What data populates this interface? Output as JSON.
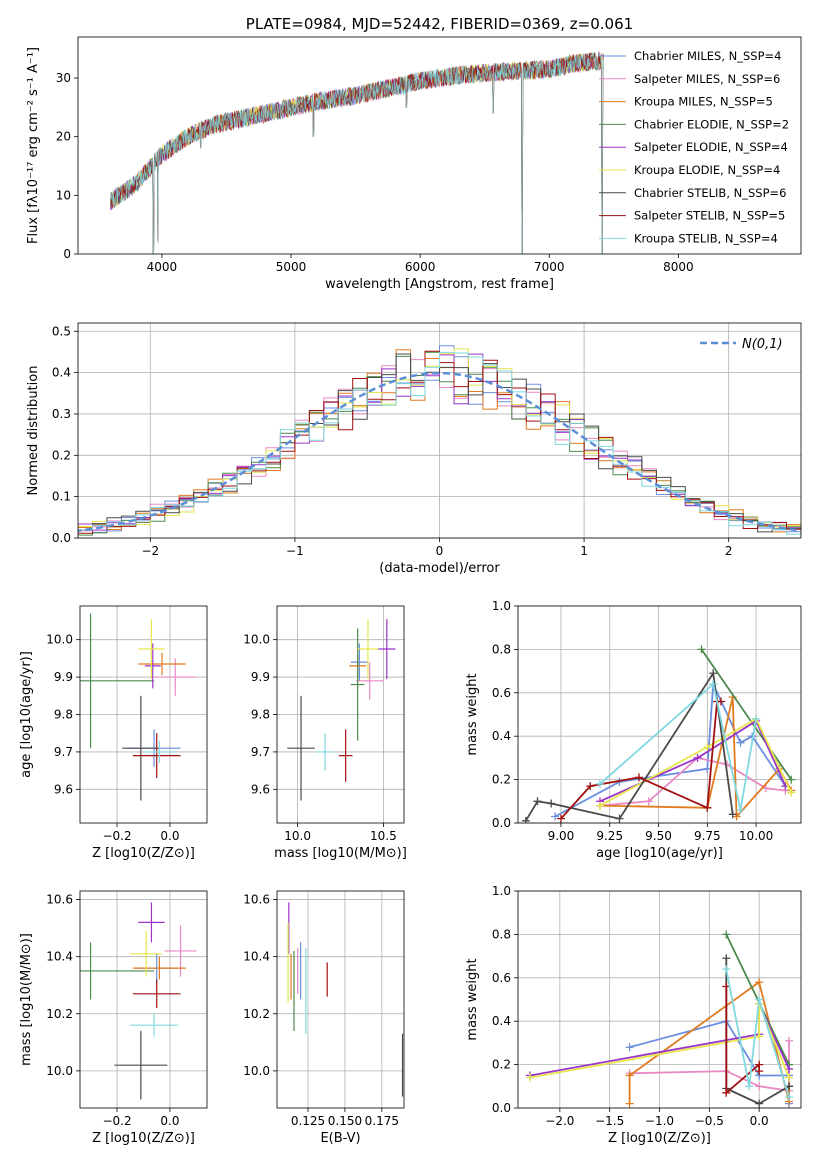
{
  "series": [
    {
      "name": "Chabrier MILES, N_SSP=4",
      "color": "#6b8fe0"
    },
    {
      "name": "Salpeter MILES, N_SSP=6",
      "color": "#e889c4"
    },
    {
      "name": "Kroupa MILES, N_SSP=5",
      "color": "#e07b20"
    },
    {
      "name": "Chabrier ELODIE, N_SSP=2",
      "color": "#4d8a4d"
    },
    {
      "name": "Salpeter ELODIE, N_SSP=4",
      "color": "#9b35c9"
    },
    {
      "name": "Kroupa ELODIE, N_SSP=4",
      "color": "#e6e64d"
    },
    {
      "name": "Chabrier STELIB, N_SSP=6",
      "color": "#4a4a4a"
    },
    {
      "name": "Salpeter STELIB, N_SSP=5",
      "color": "#a01010"
    },
    {
      "name": "Kroupa STELIB, N_SSP=4",
      "color": "#80d8e0"
    }
  ],
  "chart_data": [
    {
      "id": "spectrum",
      "type": "line",
      "title": "PLATE=0984, MJD=52442, FIBERID=0369, z=0.061",
      "xlabel": "wavelength [Angstrom, rest frame]",
      "ylabel": "Flux [fλ10⁻¹⁷ erg cm⁻² s⁻¹ A⁻¹]",
      "xlim": [
        3350,
        8950
      ],
      "ylim": [
        0,
        37
      ],
      "xticks": [
        4000,
        5000,
        6000,
        7000,
        8000
      ],
      "yticks": [
        0,
        10,
        20,
        30
      ],
      "legend_position": "right",
      "continuum": [
        [
          3600,
          9
        ],
        [
          3800,
          12
        ],
        [
          4000,
          17
        ],
        [
          4200,
          20
        ],
        [
          4400,
          22
        ],
        [
          4600,
          23
        ],
        [
          4800,
          24
        ],
        [
          5000,
          25
        ],
        [
          5200,
          26
        ],
        [
          5500,
          27
        ],
        [
          5800,
          28.5
        ],
        [
          6000,
          29.5
        ],
        [
          6300,
          30.5
        ],
        [
          6600,
          31
        ],
        [
          7000,
          31.5
        ],
        [
          7200,
          32.5
        ],
        [
          7420,
          33
        ]
      ],
      "features": [
        [
          3934,
          0
        ],
        [
          3968,
          2
        ],
        [
          4300,
          18
        ],
        [
          5175,
          20
        ],
        [
          5893,
          25
        ],
        [
          6565,
          24
        ],
        [
          6790,
          0
        ],
        [
          7410,
          0
        ]
      ]
    },
    {
      "id": "residuals",
      "type": "step",
      "xlabel": "(data-model)/error",
      "ylabel": "Normed distribution",
      "xlim": [
        -2.5,
        2.5
      ],
      "ylim": [
        0,
        0.52
      ],
      "xticks": [
        -2,
        -1,
        0,
        1,
        2
      ],
      "yticks": [
        0.0,
        0.1,
        0.2,
        0.3,
        0.4,
        0.5
      ],
      "grid": true,
      "legend_label": "N(0,1)",
      "legend_position": "top-right",
      "bin_width": 0.1
    },
    {
      "id": "age_vs_Z",
      "type": "errorbar",
      "xlabel": "Z [log10(Z/Z⊙)]",
      "ylabel": "age [log10(age/yr)]",
      "xlim": [
        -0.34,
        0.14
      ],
      "ylim": [
        9.51,
        10.09
      ],
      "xticks": [
        -0.2,
        0.0
      ],
      "yticks": [
        9.6,
        9.7,
        9.8,
        9.9,
        10.0
      ],
      "grid": true,
      "points": [
        {
          "x": -0.06,
          "y": 9.71,
          "xerr": 0.1,
          "yerr": 0.05
        },
        {
          "x": 0.02,
          "y": 9.9,
          "xerr": 0.08,
          "yerr": 0.05
        },
        {
          "x": -0.03,
          "y": 9.935,
          "xerr": 0.09,
          "yerr": 0.03
        },
        {
          "x": -0.3,
          "y": 9.89,
          "xerr": 0.24,
          "yerr": 0.18
        },
        {
          "x": -0.065,
          "y": 9.93,
          "xerr": 0.03,
          "yerr": 0.06
        },
        {
          "x": -0.07,
          "y": 9.975,
          "xerr": 0.05,
          "yerr": 0.08
        },
        {
          "x": -0.11,
          "y": 9.71,
          "xerr": 0.07,
          "yerr": 0.14
        },
        {
          "x": -0.05,
          "y": 9.69,
          "xerr": 0.09,
          "yerr": 0.06
        },
        {
          "x": -0.04,
          "y": 9.7,
          "xerr": 0.06,
          "yerr": 0.03
        }
      ]
    },
    {
      "id": "age_vs_mass",
      "type": "errorbar",
      "xlabel": "mass [log10(M/M⊙)]",
      "ylabel": "",
      "xlim": [
        9.88,
        10.62
      ],
      "ylim": [
        9.51,
        10.09
      ],
      "xticks": [
        10.0,
        10.5
      ],
      "yticks": [
        9.6,
        9.7,
        9.8,
        9.9,
        10.0
      ],
      "grid": true,
      "points": [
        {
          "x": 10.36,
          "y": 9.94,
          "xerr": 0.05,
          "yerr": 0.05
        },
        {
          "x": 10.42,
          "y": 9.89,
          "xerr": 0.08,
          "yerr": 0.05
        },
        {
          "x": 10.35,
          "y": 9.93,
          "xerr": 0.05,
          "yerr": 0.03
        },
        {
          "x": 10.35,
          "y": 9.88,
          "xerr": 0.04,
          "yerr": 0.15
        },
        {
          "x": 10.52,
          "y": 9.975,
          "xerr": 0.05,
          "yerr": 0.08
        },
        {
          "x": 10.41,
          "y": 9.975,
          "xerr": 0.06,
          "yerr": 0.08
        },
        {
          "x": 10.02,
          "y": 9.71,
          "xerr": 0.08,
          "yerr": 0.14
        },
        {
          "x": 10.28,
          "y": 9.69,
          "xerr": 0.04,
          "yerr": 0.07
        },
        {
          "x": 10.16,
          "y": 9.7,
          "xerr": 0.05,
          "yerr": 0.05
        }
      ]
    },
    {
      "id": "mass_weight_vs_age",
      "type": "line",
      "xlabel": "age [log10(age/yr)]",
      "ylabel": "mass weight",
      "xlim": [
        8.78,
        10.23
      ],
      "ylim": [
        0,
        1
      ],
      "xticks": [
        9.0,
        9.25,
        9.5,
        9.75,
        10.0
      ],
      "yticks": [
        0.0,
        0.2,
        0.4,
        0.6,
        0.8,
        1.0
      ],
      "grid": true,
      "lines": [
        [
          [
            8.97,
            0.03
          ],
          [
            9.3,
            0.19
          ],
          [
            9.75,
            0.25
          ],
          [
            9.78,
            0.64
          ],
          [
            9.92,
            0.37
          ],
          [
            9.98,
            0.4
          ],
          [
            10.15,
            0.17
          ]
        ],
        [
          [
            9.2,
            0.08
          ],
          [
            9.45,
            0.1
          ],
          [
            9.7,
            0.3
          ],
          [
            9.85,
            0.27
          ],
          [
            10.05,
            0.16
          ],
          [
            10.15,
            0.15
          ]
        ],
        [
          [
            9.2,
            0.08
          ],
          [
            9.75,
            0.07
          ],
          [
            9.88,
            0.58
          ],
          [
            9.9,
            0.03
          ],
          [
            10.12,
            0.25
          ],
          [
            10.18,
            0.15
          ]
        ],
        [
          [
            9.72,
            0.8
          ],
          [
            10.18,
            0.2
          ]
        ],
        [
          [
            9.2,
            0.1
          ],
          [
            9.7,
            0.3
          ],
          [
            10.0,
            0.47
          ],
          [
            10.15,
            0.17
          ]
        ],
        [
          [
            9.2,
            0.08
          ],
          [
            9.75,
            0.35
          ],
          [
            10.0,
            0.48
          ],
          [
            10.18,
            0.14
          ]
        ],
        [
          [
            8.82,
            0.01
          ],
          [
            8.88,
            0.1
          ],
          [
            8.95,
            0.09
          ],
          [
            9.3,
            0.02
          ],
          [
            9.78,
            0.69
          ],
          [
            9.88,
            0.04
          ]
        ],
        [
          [
            9.0,
            0.02
          ],
          [
            9.15,
            0.17
          ],
          [
            9.4,
            0.21
          ],
          [
            9.75,
            0.07
          ],
          [
            9.8,
            0.56
          ],
          [
            9.82,
            0.56
          ]
        ],
        [
          [
            9.2,
            0.18
          ],
          [
            9.78,
            0.64
          ],
          [
            9.92,
            0.06
          ],
          [
            10.0,
            0.48
          ]
        ]
      ]
    },
    {
      "id": "mass_vs_Z",
      "type": "errorbar",
      "xlabel": "Z [log10(Z/Z⊙)]",
      "ylabel": "mass [log10(M/M⊙)]",
      "xlim": [
        -0.34,
        0.14
      ],
      "ylim": [
        9.87,
        10.63
      ],
      "xticks": [
        -0.2,
        0.0
      ],
      "yticks": [
        10.0,
        10.2,
        10.4,
        10.6
      ],
      "grid": true,
      "points": [
        {
          "x": -0.05,
          "y": 10.36,
          "xerr": 0.08,
          "yerr": 0.05
        },
        {
          "x": 0.04,
          "y": 10.42,
          "xerr": 0.06,
          "yerr": 0.09
        },
        {
          "x": -0.04,
          "y": 10.36,
          "xerr": 0.1,
          "yerr": 0.04
        },
        {
          "x": -0.3,
          "y": 10.35,
          "xerr": 0.24,
          "yerr": 0.1
        },
        {
          "x": -0.07,
          "y": 10.52,
          "xerr": 0.05,
          "yerr": 0.07
        },
        {
          "x": -0.09,
          "y": 10.41,
          "xerr": 0.06,
          "yerr": 0.08
        },
        {
          "x": -0.11,
          "y": 10.02,
          "xerr": 0.1,
          "yerr": 0.12
        },
        {
          "x": -0.05,
          "y": 10.27,
          "xerr": 0.09,
          "yerr": 0.05
        },
        {
          "x": -0.06,
          "y": 10.16,
          "xerr": 0.09,
          "yerr": 0.04
        }
      ]
    },
    {
      "id": "mass_vs_EBV",
      "type": "errorbar",
      "xlabel": "E(B-V)",
      "ylabel": "",
      "xlim": [
        0.104,
        0.19
      ],
      "ylim": [
        9.87,
        10.63
      ],
      "xticks": [
        0.125,
        0.15,
        0.175
      ],
      "yticks": [
        10.0,
        10.2,
        10.4,
        10.6
      ],
      "grid": true,
      "points": [
        {
          "x": 0.12,
          "y": 10.35,
          "xerr": 0,
          "yerr": 0.1
        },
        {
          "x": 0.118,
          "y": 10.35,
          "xerr": 0,
          "yerr": 0.08
        },
        {
          "x": 0.1135,
          "y": 10.33,
          "xerr": 0,
          "yerr": 0.08
        },
        {
          "x": 0.1155,
          "y": 10.28,
          "xerr": 0,
          "yerr": 0.14
        },
        {
          "x": 0.112,
          "y": 10.5,
          "xerr": 0,
          "yerr": 0.09
        },
        {
          "x": 0.1115,
          "y": 10.38,
          "xerr": 0,
          "yerr": 0.14
        },
        {
          "x": 0.189,
          "y": 10.02,
          "xerr": 0,
          "yerr": 0.11
        },
        {
          "x": 0.138,
          "y": 10.32,
          "xerr": 0,
          "yerr": 0.06
        },
        {
          "x": 0.1235,
          "y": 10.28,
          "xerr": 0,
          "yerr": 0.15
        }
      ]
    },
    {
      "id": "mass_weight_vs_Z",
      "type": "line",
      "xlabel": "Z [log10(Z/Z⊙)]",
      "ylabel": "mass weight",
      "xlim": [
        -2.42,
        0.42
      ],
      "ylim": [
        0,
        1
      ],
      "xticks": [
        -2.0,
        -1.5,
        -1.0,
        -0.5,
        0.0
      ],
      "yticks": [
        0.0,
        0.2,
        0.4,
        0.6,
        0.8,
        1.0
      ],
      "grid": true,
      "lines": [
        [
          [
            -1.3,
            0.28
          ],
          [
            -0.33,
            0.4
          ],
          [
            0.0,
            0.15
          ],
          [
            0.3,
            0.15
          ],
          [
            0.3,
            0.02
          ]
        ],
        [
          [
            -1.3,
            0.16
          ],
          [
            -0.33,
            0.17
          ],
          [
            0.0,
            0.1
          ],
          [
            0.3,
            0.08
          ],
          [
            0.3,
            0.31
          ]
        ],
        [
          [
            -1.3,
            0.02
          ],
          [
            -1.3,
            0.15
          ],
          [
            0.0,
            0.58
          ],
          [
            0.3,
            0.03
          ],
          [
            0.3,
            0.1
          ]
        ],
        [
          [
            -0.33,
            0.8
          ],
          [
            0.3,
            0.2
          ]
        ],
        [
          [
            -2.3,
            0.15
          ],
          [
            0.0,
            0.34
          ],
          [
            0.0,
            0.48
          ],
          [
            0.3,
            0.18
          ]
        ],
        [
          [
            -2.3,
            0.14
          ],
          [
            0.0,
            0.33
          ],
          [
            0.0,
            0.48
          ],
          [
            0.3,
            0.14
          ]
        ],
        [
          [
            -0.33,
            0.69
          ],
          [
            -0.33,
            0.09
          ],
          [
            0.0,
            0.02
          ],
          [
            0.3,
            0.1
          ]
        ],
        [
          [
            -0.33,
            0.56
          ],
          [
            -0.33,
            0.07
          ],
          [
            0.0,
            0.2
          ],
          [
            0.0,
            0.17
          ]
        ],
        [
          [
            -0.33,
            0.64
          ],
          [
            -0.1,
            0.1
          ],
          [
            0.0,
            0.5
          ],
          [
            0.3,
            0.05
          ]
        ]
      ]
    }
  ]
}
